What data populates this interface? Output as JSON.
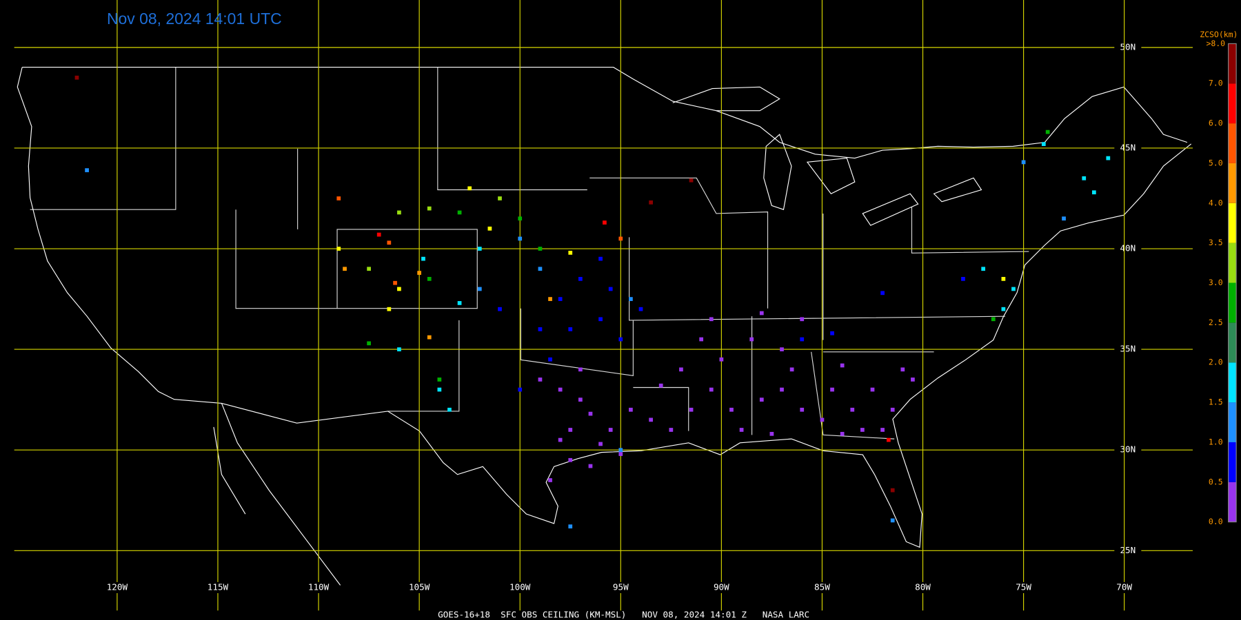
{
  "title": "Nov 08, 2024 14:01 UTC",
  "footer": "GOES-16+18  SFC OBS CEILING (KM-MSL)   NOV 08, 2024 14:01 Z   NASA LARC",
  "lat_lines": [
    {
      "value": 50,
      "label": "50N"
    },
    {
      "value": 45,
      "label": "45N"
    },
    {
      "value": 40,
      "label": "40N"
    },
    {
      "value": 35,
      "label": "35N"
    },
    {
      "value": 30,
      "label": "30N"
    },
    {
      "value": 25,
      "label": "25N"
    }
  ],
  "lon_lines": [
    {
      "value": -120,
      "label": "120W"
    },
    {
      "value": -115,
      "label": "115W"
    },
    {
      "value": -110,
      "label": "110W"
    },
    {
      "value": -105,
      "label": "105W"
    },
    {
      "value": -100,
      "label": "100W"
    },
    {
      "value": -95,
      "label": "95W"
    },
    {
      "value": -90,
      "label": "90W"
    },
    {
      "value": -85,
      "label": "85W"
    },
    {
      "value": -80,
      "label": "80W"
    },
    {
      "value": -75,
      "label": "75W"
    },
    {
      "value": -70,
      "label": "70W"
    }
  ],
  "legend": {
    "title": "ZCSO(km)",
    "bins": [
      {
        "value": 0,
        "label": "0.0"
      },
      {
        "value": 0.5,
        "label": "0.5"
      },
      {
        "value": 1,
        "label": "1.0"
      },
      {
        "value": 1.5,
        "label": "1.5"
      },
      {
        "value": 2,
        "label": "2.0"
      },
      {
        "value": 2.5,
        "label": "2.5"
      },
      {
        "value": 3,
        "label": "3.0"
      },
      {
        "value": 3.5,
        "label": "3.5"
      },
      {
        "value": 4,
        "label": "4.0"
      },
      {
        "value": 5,
        "label": "5.0"
      },
      {
        "value": 6,
        "label": "6.0"
      },
      {
        "value": 7,
        "label": "7.0"
      },
      {
        "value": 8,
        "label": ">8.0"
      }
    ],
    "colors": [
      "#9933ee",
      "#0000ff",
      "#1e90ff",
      "#00e5ff",
      "#2e8b57",
      "#00b000",
      "#99dd11",
      "#ffff00",
      "#ff9900",
      "#ff5500",
      "#ff0000",
      "#8b0000"
    ]
  },
  "stations": [
    {
      "lon": -97,
      "lat": 32.5,
      "ceiling": 0.2
    },
    {
      "lon": -96.5,
      "lat": 31.8,
      "ceiling": 0.2
    },
    {
      "lon": -95.5,
      "lat": 31,
      "ceiling": 0.2
    },
    {
      "lon": -97.5,
      "lat": 31,
      "ceiling": 0.2
    },
    {
      "lon": -96,
      "lat": 30.3,
      "ceiling": 0.2
    },
    {
      "lon": -98,
      "lat": 30.5,
      "ceiling": 0.2
    },
    {
      "lon": -94.5,
      "lat": 32,
      "ceiling": 0.2
    },
    {
      "lon": -93.5,
      "lat": 31.5,
      "ceiling": 0.2
    },
    {
      "lon": -92.5,
      "lat": 31,
      "ceiling": 0.2
    },
    {
      "lon": -91.5,
      "lat": 32,
      "ceiling": 0.2
    },
    {
      "lon": -90.5,
      "lat": 33,
      "ceiling": 0.2
    },
    {
      "lon": -89.5,
      "lat": 32,
      "ceiling": 0.2
    },
    {
      "lon": -89,
      "lat": 31,
      "ceiling": 0.2
    },
    {
      "lon": -88,
      "lat": 32.5,
      "ceiling": 0.2
    },
    {
      "lon": -87,
      "lat": 33,
      "ceiling": 0.2
    },
    {
      "lon": -86,
      "lat": 32,
      "ceiling": 0.2
    },
    {
      "lon": -85,
      "lat": 31.5,
      "ceiling": 0.2
    },
    {
      "lon": -86.5,
      "lat": 34,
      "ceiling": 0.2
    },
    {
      "lon": -84.5,
      "lat": 33,
      "ceiling": 0.2
    },
    {
      "lon": -83.5,
      "lat": 32,
      "ceiling": 0.2
    },
    {
      "lon": -82.5,
      "lat": 33,
      "ceiling": 0.2
    },
    {
      "lon": -81.5,
      "lat": 32,
      "ceiling": 0.2
    },
    {
      "lon": -82,
      "lat": 31,
      "ceiling": 0.2
    },
    {
      "lon": -83,
      "lat": 31,
      "ceiling": 0.2
    },
    {
      "lon": -84,
      "lat": 30.8,
      "ceiling": 0.2
    },
    {
      "lon": -87.5,
      "lat": 30.8,
      "ceiling": 0.2
    },
    {
      "lon": -90,
      "lat": 34.5,
      "ceiling": 0.2
    },
    {
      "lon": -88.5,
      "lat": 35.5,
      "ceiling": 0.2
    },
    {
      "lon": -87,
      "lat": 35,
      "ceiling": 0.2
    },
    {
      "lon": -91,
      "lat": 35.5,
      "ceiling": 0.2
    },
    {
      "lon": -92,
      "lat": 34,
      "ceiling": 0.2
    },
    {
      "lon": -93,
      "lat": 33.2,
      "ceiling": 0.2
    },
    {
      "lon": -97.5,
      "lat": 29.5,
      "ceiling": 0.2
    },
    {
      "lon": -96.5,
      "lat": 29.2,
      "ceiling": 0.2
    },
    {
      "lon": -98.5,
      "lat": 28.5,
      "ceiling": 0.2
    },
    {
      "lon": -95,
      "lat": 29.8,
      "ceiling": 0.2
    },
    {
      "lon": -84,
      "lat": 34.2,
      "ceiling": 0.2
    },
    {
      "lon": -81,
      "lat": 34,
      "ceiling": 0.2
    },
    {
      "lon": -80.5,
      "lat": 33.5,
      "ceiling": 0.2
    },
    {
      "lon": -86,
      "lat": 36.5,
      "ceiling": 0.2
    },
    {
      "lon": -88,
      "lat": 36.8,
      "ceiling": 0.2
    },
    {
      "lon": -90.5,
      "lat": 36.5,
      "ceiling": 0.2
    },
    {
      "lon": -97,
      "lat": 34,
      "ceiling": 0.2
    },
    {
      "lon": -98,
      "lat": 33,
      "ceiling": 0.2
    },
    {
      "lon": -99,
      "lat": 33.5,
      "ceiling": 0.2
    },
    {
      "lon": -97.5,
      "lat": 36,
      "ceiling": 0.8
    },
    {
      "lon": -96,
      "lat": 36.5,
      "ceiling": 0.8
    },
    {
      "lon": -98,
      "lat": 37.5,
      "ceiling": 0.8
    },
    {
      "lon": -99,
      "lat": 36,
      "ceiling": 0.8
    },
    {
      "lon": -97,
      "lat": 38.5,
      "ceiling": 0.8
    },
    {
      "lon": -95.5,
      "lat": 38,
      "ceiling": 0.8
    },
    {
      "lon": -94,
      "lat": 37,
      "ceiling": 0.8
    },
    {
      "lon": -95,
      "lat": 35.5,
      "ceiling": 0.8
    },
    {
      "lon": -86,
      "lat": 35.5,
      "ceiling": 0.8
    },
    {
      "lon": -84.5,
      "lat": 35.8,
      "ceiling": 0.8
    },
    {
      "lon": -82,
      "lat": 37.8,
      "ceiling": 0.8
    },
    {
      "lon": -78,
      "lat": 38.5,
      "ceiling": 0.8
    },
    {
      "lon": -98.5,
      "lat": 34.5,
      "ceiling": 0.8
    },
    {
      "lon": -100,
      "lat": 33,
      "ceiling": 0.8
    },
    {
      "lon": -101,
      "lat": 37,
      "ceiling": 0.8
    },
    {
      "lon": -96,
      "lat": 39.5,
      "ceiling": 0.8
    },
    {
      "lon": -99,
      "lat": 39,
      "ceiling": 1.2
    },
    {
      "lon": -100,
      "lat": 40.5,
      "ceiling": 1.2
    },
    {
      "lon": -102,
      "lat": 38,
      "ceiling": 1.2
    },
    {
      "lon": -94.5,
      "lat": 37.5,
      "ceiling": 1.2
    },
    {
      "lon": -95,
      "lat": 30,
      "ceiling": 1.2
    },
    {
      "lon": -75,
      "lat": 44.3,
      "ceiling": 1.2
    },
    {
      "lon": -73,
      "lat": 41.5,
      "ceiling": 1.2
    },
    {
      "lon": -97.5,
      "lat": 26.2,
      "ceiling": 1.2
    },
    {
      "lon": -81.5,
      "lat": 26.5,
      "ceiling": 1.2
    },
    {
      "lon": -121.5,
      "lat": 43.9,
      "ceiling": 1.2
    },
    {
      "lon": -104.8,
      "lat": 39.5,
      "ceiling": 1.7
    },
    {
      "lon": -103,
      "lat": 37.3,
      "ceiling": 1.7
    },
    {
      "lon": -106,
      "lat": 35,
      "ceiling": 1.7
    },
    {
      "lon": -102,
      "lat": 40,
      "ceiling": 1.7
    },
    {
      "lon": -77,
      "lat": 39,
      "ceiling": 1.7
    },
    {
      "lon": -76,
      "lat": 37,
      "ceiling": 1.7
    },
    {
      "lon": -75.5,
      "lat": 38,
      "ceiling": 1.7
    },
    {
      "lon": -72,
      "lat": 43.5,
      "ceiling": 1.7
    },
    {
      "lon": -70.8,
      "lat": 44.5,
      "ceiling": 1.7
    },
    {
      "lon": -71.5,
      "lat": 42.8,
      "ceiling": 1.7
    },
    {
      "lon": -74,
      "lat": 45.2,
      "ceiling": 1.7
    },
    {
      "lon": -104,
      "lat": 33,
      "ceiling": 1.7
    },
    {
      "lon": -103.5,
      "lat": 32,
      "ceiling": 1.7
    },
    {
      "lon": -104.5,
      "lat": 38.5,
      "ceiling": 2.7
    },
    {
      "lon": -107.5,
      "lat": 35.3,
      "ceiling": 2.7
    },
    {
      "lon": -103,
      "lat": 41.8,
      "ceiling": 2.7
    },
    {
      "lon": -100,
      "lat": 41.5,
      "ceiling": 2.7
    },
    {
      "lon": -99,
      "lat": 40,
      "ceiling": 2.7
    },
    {
      "lon": -104,
      "lat": 33.5,
      "ceiling": 2.7
    },
    {
      "lon": -76.5,
      "lat": 36.5,
      "ceiling": 2.7
    },
    {
      "lon": -73.8,
      "lat": 45.8,
      "ceiling": 2.7
    },
    {
      "lon": -106,
      "lat": 41.8,
      "ceiling": 3.2
    },
    {
      "lon": -104.5,
      "lat": 42,
      "ceiling": 3.2
    },
    {
      "lon": -101,
      "lat": 42.5,
      "ceiling": 3.2
    },
    {
      "lon": -107.5,
      "lat": 39,
      "ceiling": 3.2
    },
    {
      "lon": -109,
      "lat": 40,
      "ceiling": 3.7
    },
    {
      "lon": -106.5,
      "lat": 37,
      "ceiling": 3.7
    },
    {
      "lon": -102.5,
      "lat": 43,
      "ceiling": 3.7
    },
    {
      "lon": -101.5,
      "lat": 41,
      "ceiling": 3.7
    },
    {
      "lon": -97.5,
      "lat": 39.8,
      "ceiling": 3.7
    },
    {
      "lon": -106,
      "lat": 38,
      "ceiling": 3.7
    },
    {
      "lon": -76,
      "lat": 38.5,
      "ceiling": 3.7
    },
    {
      "lon": -108.7,
      "lat": 39,
      "ceiling": 4.5
    },
    {
      "lon": -105,
      "lat": 38.8,
      "ceiling": 4.5
    },
    {
      "lon": -98.5,
      "lat": 37.5,
      "ceiling": 4.5
    },
    {
      "lon": -104.5,
      "lat": 35.6,
      "ceiling": 4.5
    },
    {
      "lon": -106.2,
      "lat": 38.3,
      "ceiling": 5.5
    },
    {
      "lon": -109,
      "lat": 42.5,
      "ceiling": 5.5
    },
    {
      "lon": -95,
      "lat": 40.5,
      "ceiling": 5.5
    },
    {
      "lon": -106.5,
      "lat": 40.3,
      "ceiling": 5.5
    },
    {
      "lon": -107,
      "lat": 40.7,
      "ceiling": 6.5
    },
    {
      "lon": -95.8,
      "lat": 41.3,
      "ceiling": 6.5
    },
    {
      "lon": -81.7,
      "lat": 30.5,
      "ceiling": 6.5
    },
    {
      "lon": -91.5,
      "lat": 43.4,
      "ceiling": 7.5
    },
    {
      "lon": -122,
      "lat": 48.5,
      "ceiling": 7.5
    },
    {
      "lon": -93.5,
      "lat": 42.3,
      "ceiling": 7.5
    },
    {
      "lon": -81.5,
      "lat": 28,
      "ceiling": 7.5
    }
  ]
}
